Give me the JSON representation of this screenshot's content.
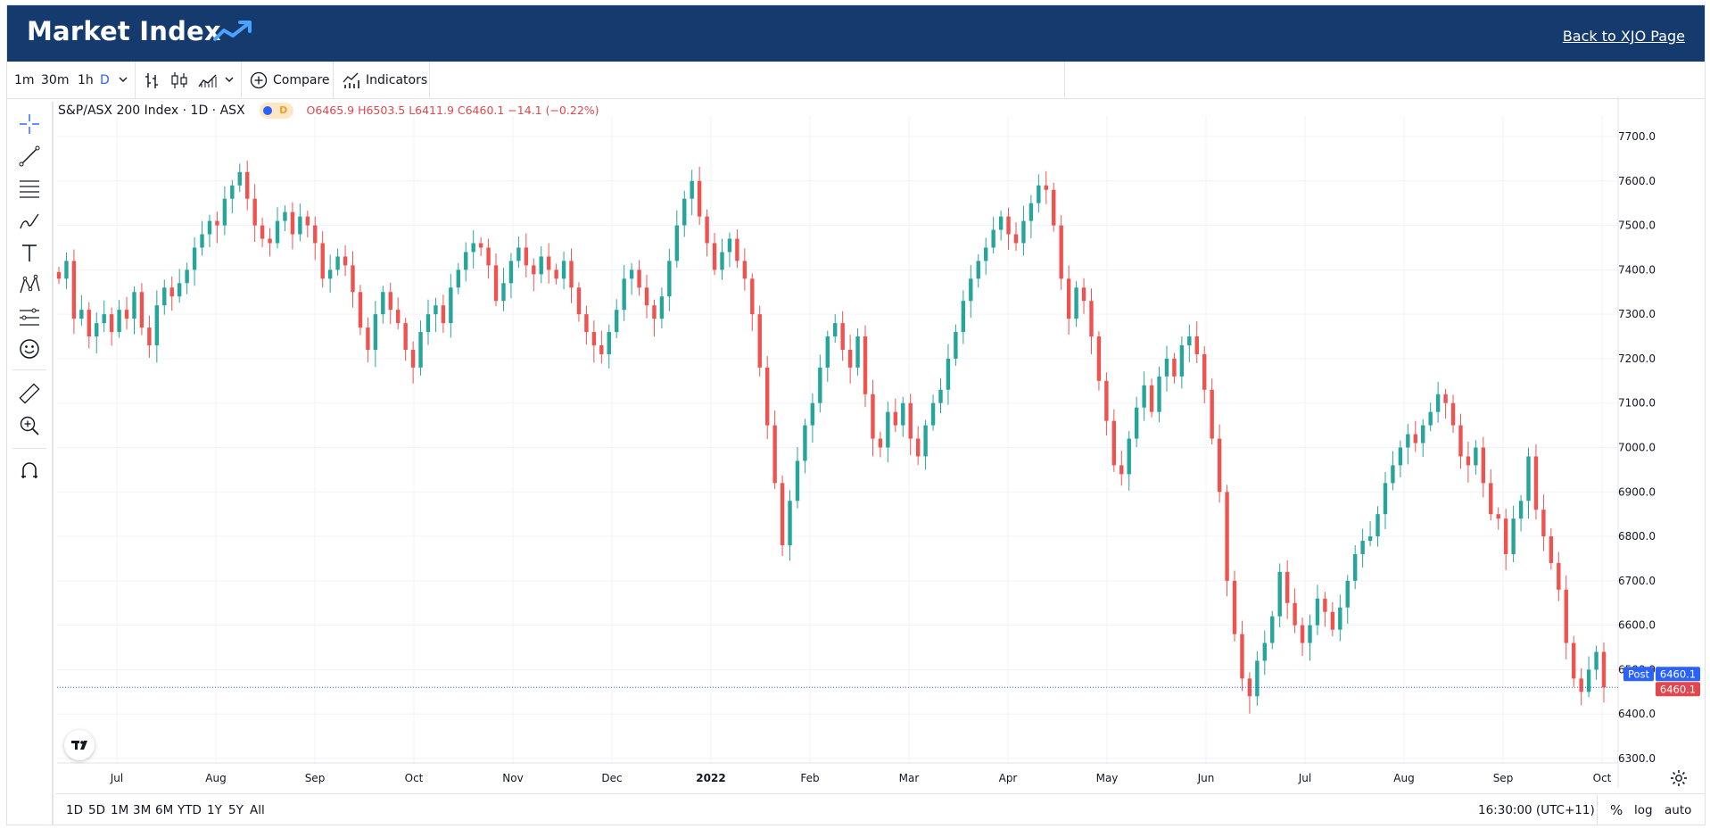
{
  "header": {
    "brand": "Market Index",
    "back_link": "Back to XJO Page"
  },
  "toolbar": {
    "intervals": [
      "1m",
      "30m",
      "1h",
      "D"
    ],
    "compare_label": "Compare",
    "indicators_label": "Indicators"
  },
  "legend": {
    "symbol": "S&P/ASX 200 Index · 1D · ASX",
    "badge": "D",
    "ohlc": "O6465.9 H6503.5 L6411.9 C6460.1 −14.1 (−0.22%)"
  },
  "price_tags": {
    "post_label": "Post",
    "post_value": "6460.1",
    "last_value": "6460.1"
  },
  "bottombar": {
    "ranges": [
      "1D",
      "5D",
      "1M",
      "3M",
      "6M",
      "YTD",
      "1Y",
      "5Y",
      "All"
    ],
    "time": "16:30:00 (UTC+11)",
    "percent": "%",
    "log": "log",
    "auto": "auto"
  },
  "colors": {
    "up": "#26a69a",
    "down": "#ef5350",
    "header": "#143a6e",
    "accent": "#2962ff"
  },
  "chart_data": {
    "type": "candlestick",
    "ylim": [
      6300,
      7700
    ],
    "y_ticks": [
      6300,
      6400,
      6500,
      6600,
      6700,
      6800,
      6900,
      7000,
      7100,
      7200,
      7300,
      7400,
      7500,
      7600,
      7700
    ],
    "x_ticks": [
      "Jul",
      "Aug",
      "Sep",
      "Oct",
      "Nov",
      "Dec",
      "2022",
      "Feb",
      "Mar",
      "Apr",
      "May",
      "Jun",
      "Jul",
      "Aug",
      "Sep",
      "Oct"
    ],
    "last_close": 6460.1,
    "closes": [
      7380,
      7420,
      7290,
      7310,
      7250,
      7280,
      7300,
      7260,
      7310,
      7290,
      7350,
      7270,
      7230,
      7320,
      7360,
      7340,
      7370,
      7400,
      7450,
      7480,
      7510,
      7500,
      7560,
      7590,
      7620,
      7560,
      7500,
      7470,
      7460,
      7510,
      7530,
      7480,
      7520,
      7500,
      7460,
      7380,
      7400,
      7430,
      7410,
      7350,
      7270,
      7220,
      7300,
      7350,
      7310,
      7280,
      7220,
      7180,
      7260,
      7300,
      7320,
      7280,
      7360,
      7400,
      7440,
      7460,
      7450,
      7410,
      7330,
      7370,
      7420,
      7450,
      7410,
      7390,
      7430,
      7400,
      7380,
      7420,
      7360,
      7300,
      7260,
      7230,
      7210,
      7260,
      7310,
      7380,
      7400,
      7360,
      7320,
      7290,
      7340,
      7420,
      7500,
      7560,
      7600,
      7520,
      7460,
      7400,
      7440,
      7470,
      7420,
      7380,
      7300,
      7180,
      7050,
      6920,
      6780,
      6880,
      6970,
      7050,
      7100,
      7180,
      7250,
      7280,
      7220,
      7180,
      7250,
      7120,
      7020,
      7000,
      7080,
      7050,
      7100,
      7020,
      6980,
      7050,
      7100,
      7130,
      7200,
      7260,
      7330,
      7380,
      7420,
      7450,
      7490,
      7520,
      7480,
      7460,
      7510,
      7550,
      7590,
      7580,
      7500,
      7380,
      7290,
      7360,
      7330,
      7250,
      7150,
      7060,
      6960,
      6940,
      7020,
      7090,
      7140,
      7080,
      7160,
      7200,
      7160,
      7230,
      7250,
      7210,
      7130,
      7020,
      6900,
      6700,
      6580,
      6480,
      6440,
      6520,
      6560,
      6620,
      6720,
      6650,
      6600,
      6560,
      6600,
      6660,
      6630,
      6590,
      6640,
      6700,
      6760,
      6790,
      6800,
      6850,
      6920,
      6960,
      7000,
      7030,
      7010,
      7050,
      7080,
      7120,
      7100,
      7050,
      6980,
      6960,
      7000,
      6920,
      6850,
      6840,
      6760,
      6840,
      6880,
      6980,
      6860,
      6800,
      6740,
      6680,
      6560,
      6480,
      6450,
      6500,
      6540,
      6460.1
    ]
  }
}
